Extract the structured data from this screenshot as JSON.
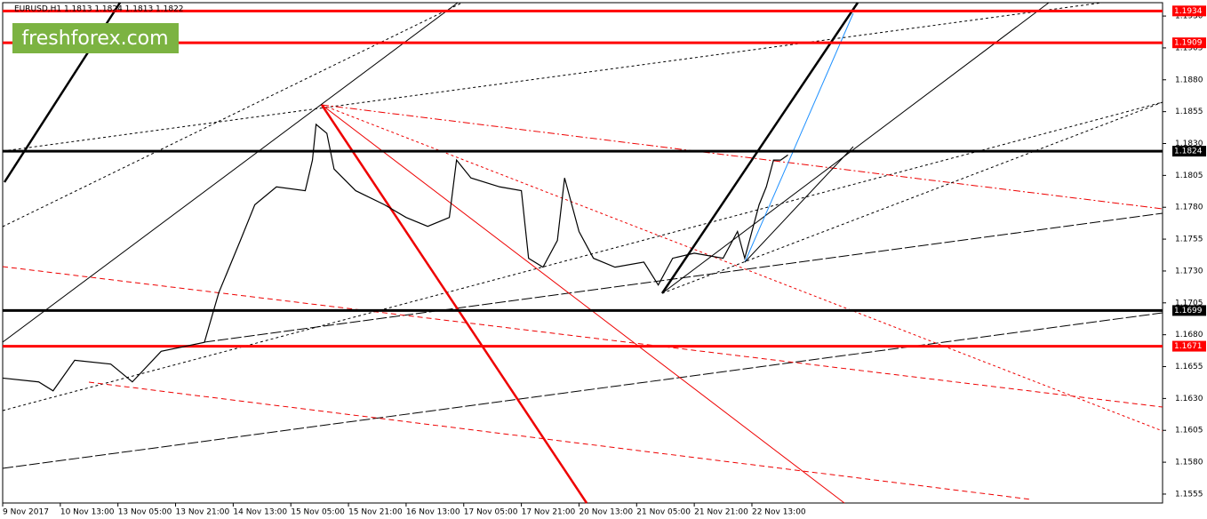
{
  "chart_data": {
    "type": "line",
    "title": "EURUSD,H1  1.1813 1.1824 1.1813 1.1822",
    "watermark": "freshforex.com",
    "xlim": [
      0,
      322
    ],
    "ylim": [
      1.1548,
      1.19405
    ],
    "xticks": [
      {
        "value": 0,
        "label": "9 Nov 2017"
      },
      {
        "value": 16,
        "label": "10 Nov 13:00"
      },
      {
        "value": 32,
        "label": "13 Nov 05:00"
      },
      {
        "value": 48,
        "label": "13 Nov 21:00"
      },
      {
        "value": 64,
        "label": "14 Nov 13:00"
      },
      {
        "value": 80,
        "label": "15 Nov 05:00"
      },
      {
        "value": 96,
        "label": "15 Nov 21:00"
      },
      {
        "value": 112,
        "label": "16 Nov 13:00"
      },
      {
        "value": 128,
        "label": "17 Nov 05:00"
      },
      {
        "value": 144,
        "label": "17 Nov 21:00"
      },
      {
        "value": 160,
        "label": "20 Nov 13:00"
      },
      {
        "value": 176,
        "label": "21 Nov 05:00"
      },
      {
        "value": 192,
        "label": "21 Nov 21:00"
      },
      {
        "value": 208,
        "label": "22 Nov 13:00"
      }
    ],
    "yticks": [
      {
        "value": 1.193,
        "label": "1.1930"
      },
      1.1905,
      {
        "value": 1.188,
        "label": "1.1880"
      },
      1.1855,
      {
        "value": 1.183,
        "label": "1.1830"
      },
      1.1805,
      {
        "value": 1.178,
        "label": "1.1780"
      },
      1.1755,
      {
        "value": 1.173,
        "label": "1.1730"
      },
      1.1705,
      {
        "value": 1.168,
        "label": "1.1680"
      },
      1.1655,
      {
        "value": 1.163,
        "label": "1.1630"
      },
      1.1605,
      {
        "value": 1.158,
        "label": "1.1580"
      },
      1.1555
    ],
    "levels": [
      {
        "value": 1.1934,
        "color": "#ff0000"
      },
      {
        "value": 1.1909,
        "color": "#ff0000"
      },
      {
        "value": 1.1824,
        "color": "#000000"
      },
      {
        "value": 1.1699,
        "color": "#000000"
      },
      {
        "value": 1.1671,
        "color": "#ff0000"
      }
    ],
    "series": [
      {
        "color": "#000000",
        "x": [
          0,
          10,
          14,
          20,
          30,
          36,
          44,
          56,
          60,
          66,
          70,
          76,
          84,
          86,
          87,
          90,
          92,
          98,
          106,
          112,
          118,
          124,
          126,
          130,
          138,
          144,
          146,
          150,
          154,
          156,
          160,
          164,
          170,
          178,
          182,
          186,
          192,
          200,
          204,
          206,
          210,
          212,
          214,
          216,
          218
        ],
        "values": [
          1.1646,
          1.1643,
          1.1636,
          1.166,
          1.1657,
          1.1643,
          1.1667,
          1.1674,
          1.1713,
          1.1754,
          1.1782,
          1.1796,
          1.1793,
          1.1817,
          1.1845,
          1.1838,
          1.181,
          1.1793,
          1.1782,
          1.1772,
          1.1765,
          1.1772,
          1.1817,
          1.1803,
          1.1796,
          1.1793,
          1.174,
          1.1733,
          1.1754,
          1.1803,
          1.1761,
          1.174,
          1.1733,
          1.1737,
          1.1719,
          1.174,
          1.1744,
          1.174,
          1.1761,
          1.174,
          1.1782,
          1.1796,
          1.1817,
          1.1817,
          1.1821
        ]
      }
    ]
  }
}
